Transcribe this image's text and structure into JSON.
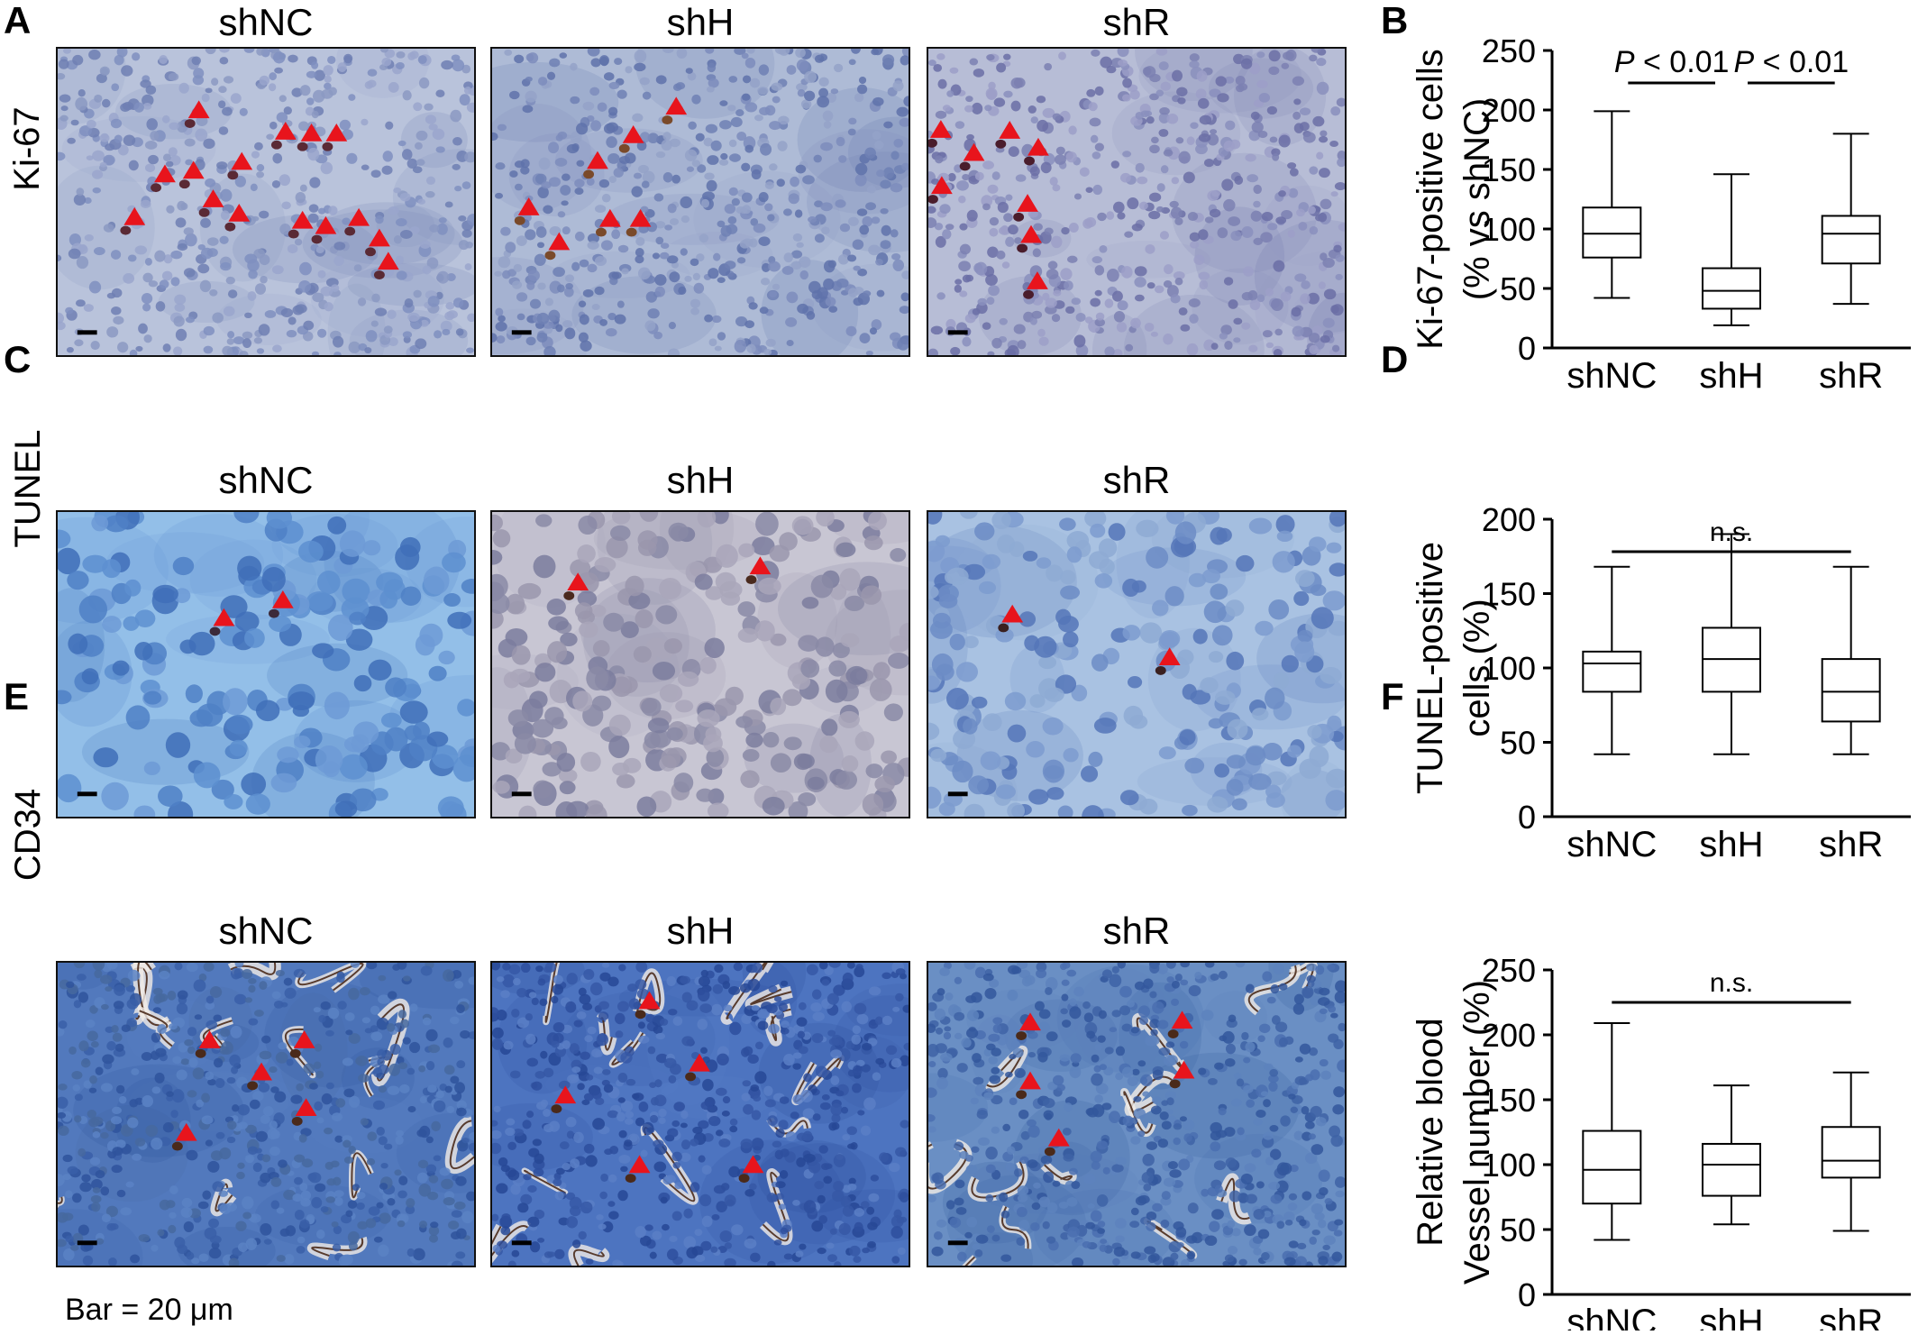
{
  "panels": {
    "A": {
      "letter": "A",
      "row_label": "Ki-67",
      "titles": [
        "shNC",
        "shH",
        "shR"
      ]
    },
    "B": {
      "letter": "B"
    },
    "C": {
      "letter": "C",
      "row_label": "TUNEL",
      "titles": [
        "shNC",
        "shH",
        "shR"
      ]
    },
    "D": {
      "letter": "D"
    },
    "E": {
      "letter": "E",
      "row_label": "CD34",
      "titles": [
        "shNC",
        "shH",
        "shR"
      ]
    },
    "F": {
      "letter": "F"
    }
  },
  "colors": {
    "arrow": "#e8141c",
    "ki67_bg": "#b8c4dc",
    "tunel_bg": "#8cb8e6",
    "tunel_bg_alt": "#c9c6d2",
    "cd34_bg": "#4f79c2",
    "box_stroke": "#000000"
  },
  "scale_bar_note": "Bar = 20 μm",
  "chart_data": [
    {
      "panel": "B",
      "type": "box",
      "ylabel_lines": [
        "Ki-67-positive cells",
        "(% vs shNC)"
      ],
      "categories": [
        "shNC",
        "shH",
        "shR"
      ],
      "ylim": [
        0,
        250
      ],
      "yticks": [
        0,
        50,
        100,
        150,
        200,
        250
      ],
      "boxes": [
        {
          "min": 42,
          "q1": 76,
          "median": 96,
          "q3": 118,
          "max": 199
        },
        {
          "min": 19,
          "q1": 33,
          "median": 48,
          "q3": 67,
          "max": 146
        },
        {
          "min": 37,
          "q1": 71,
          "median": 96,
          "q3": 111,
          "max": 180
        }
      ],
      "annotations": [
        {
          "from": 0,
          "to": 1,
          "text_italic": "P",
          "text_rest": " < 0.01"
        },
        {
          "from": 1,
          "to": 2,
          "text_italic": "P",
          "text_rest": " < 0.01"
        }
      ]
    },
    {
      "panel": "D",
      "type": "box",
      "ylabel_lines": [
        "TUNEL-positive",
        "cells (%)"
      ],
      "categories": [
        "shNC",
        "shH",
        "shR"
      ],
      "ylim": [
        0,
        200
      ],
      "yticks": [
        0,
        50,
        100,
        150,
        200
      ],
      "boxes": [
        {
          "min": 42,
          "q1": 84,
          "median": 103,
          "q3": 111,
          "max": 168
        },
        {
          "min": 42,
          "q1": 84,
          "median": 106,
          "q3": 127,
          "max": 190
        },
        {
          "min": 42,
          "q1": 64,
          "median": 84,
          "q3": 106,
          "max": 168
        }
      ],
      "annotations": [
        {
          "from": 0,
          "to": 2,
          "text_italic": "",
          "text_rest": "n.s."
        }
      ]
    },
    {
      "panel": "F",
      "type": "box",
      "ylabel_lines": [
        "Relative blood",
        "Vessel number (%)"
      ],
      "categories": [
        "shNC",
        "shH",
        "shR"
      ],
      "ylim": [
        0,
        250
      ],
      "yticks": [
        0,
        50,
        100,
        150,
        200,
        250
      ],
      "boxes": [
        {
          "min": 42,
          "q1": 70,
          "median": 96,
          "q3": 126,
          "max": 209
        },
        {
          "min": 54,
          "q1": 76,
          "median": 100,
          "q3": 116,
          "max": 161
        },
        {
          "min": 49,
          "q1": 90,
          "median": 103,
          "q3": 129,
          "max": 171
        }
      ],
      "annotations": [
        {
          "from": 0,
          "to": 2,
          "text_italic": "",
          "text_rest": "n.s."
        }
      ]
    }
  ]
}
